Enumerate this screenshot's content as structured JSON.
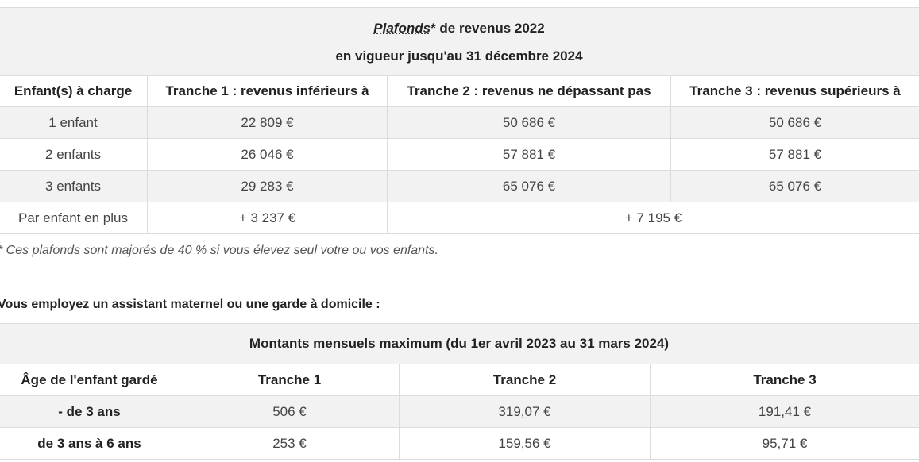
{
  "table1": {
    "title_word": "Plafonds",
    "title_rest": "* de revenus 2022",
    "title_line2": "en vigueur jusqu'au 31 décembre 2024",
    "headers": [
      "Enfant(s) à charge",
      "Tranche 1 : revenus inférieurs à",
      "Tranche 2 : revenus ne dépassant pas",
      "Tranche 3 : revenus supérieurs à"
    ],
    "rows": [
      [
        "1 enfant",
        "22 809 €",
        "50 686 €",
        "50 686 €"
      ],
      [
        "2 enfants",
        "26 046 €",
        "57 881 €",
        "57 881 €"
      ],
      [
        "3 enfants",
        "29 283 €",
        "65 076 €",
        "65 076 €"
      ]
    ],
    "last_row": {
      "label": "Par enfant en plus",
      "t1": "+ 3 237 €",
      "t23": "+ 7 195 €"
    }
  },
  "footnote": "* Ces plafonds sont majorés de 40 % si vous élevez seul votre ou vos enfants.",
  "subtitle": "Vous employez un assistant maternel ou une garde à domicile :",
  "table2": {
    "title": "Montants mensuels maximum (du 1er avril 2023 au 31 mars 2024)",
    "headers": [
      "Âge de l'enfant gardé",
      "Tranche 1",
      "Tranche 2",
      "Tranche 3"
    ],
    "rows": [
      [
        "- de 3 ans",
        "506 €",
        "319,07 €",
        "191,41 €"
      ],
      [
        "de 3 ans à 6 ans",
        "253 €",
        "159,56 €",
        "95,71 €"
      ]
    ]
  }
}
